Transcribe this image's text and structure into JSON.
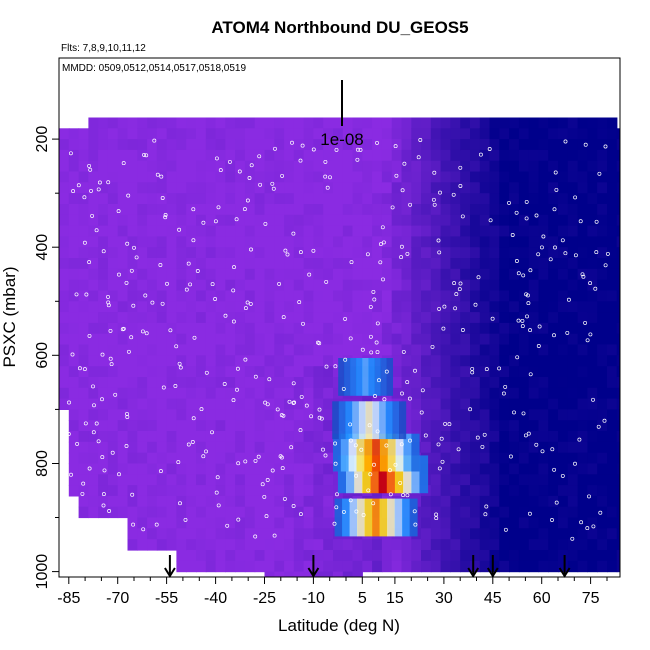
{
  "chart_data": {
    "type": "heatmap",
    "title": "ATOM4 Northbound DU_GEOS5",
    "flights_label": "Flts: 7,8,9,10,11,12",
    "dates_label": "MMDD: 0509,0512,0514,0517,0518,0519",
    "xlabel": "Latitude (deg N)",
    "ylabel": "PSXC (mbar)",
    "xlim": [
      -88,
      84
    ],
    "ylim": [
      1010,
      50
    ],
    "x_ticks": [
      -85,
      -70,
      -55,
      -40,
      -25,
      -10,
      5,
      15,
      30,
      45,
      60,
      75
    ],
    "y_ticks": [
      200,
      400,
      600,
      800,
      1000
    ],
    "scale_label": "1e-08",
    "arrows_latitude": [
      -54,
      -10,
      39,
      45,
      67
    ],
    "dust_core": [
      {
        "lat": 10,
        "psxc": 820,
        "intensity": 1.0
      },
      {
        "lat": 8,
        "psxc": 780,
        "intensity": 0.9
      },
      {
        "lat": 8,
        "psxc": 900,
        "intensity": 0.8
      },
      {
        "lat": 6,
        "psxc": 720,
        "intensity": 0.55
      },
      {
        "lat": 5,
        "psxc": 640,
        "intensity": 0.35
      }
    ],
    "colors": {
      "background_purple": "#8a2be2",
      "deep_blue": "#00008b",
      "core_red": "#cc0000",
      "core_yellow": "#ffd700"
    }
  }
}
